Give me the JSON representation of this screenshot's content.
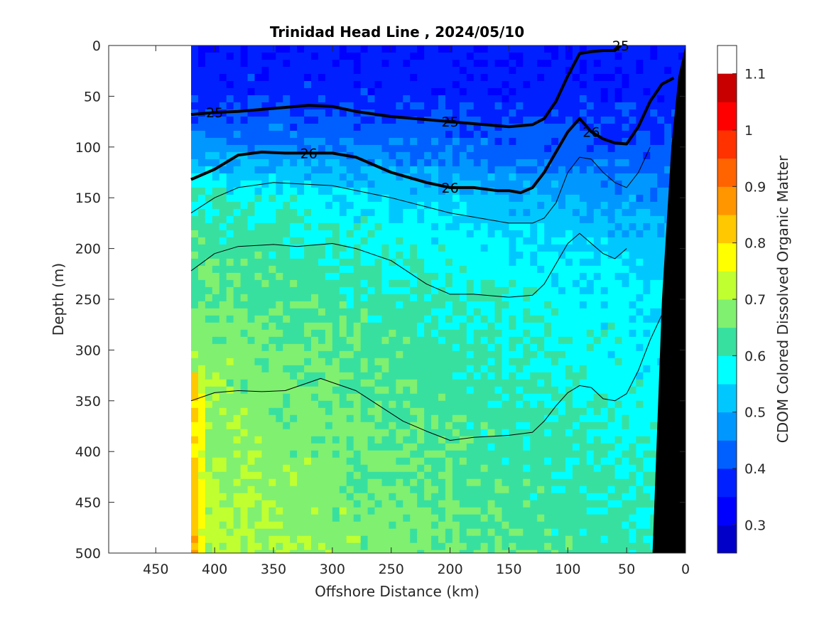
{
  "chart_data": {
    "type": "heatmap",
    "title": "Trinidad Head Line , 2024/05/10",
    "xlabel": "Offshore Distance (km)",
    "ylabel": "Depth (m)",
    "colorbar_label": "CDOM Colored Dissolved Organic Matter",
    "xlim": [
      490,
      0
    ],
    "ylim": [
      0,
      500
    ],
    "x_reversed": true,
    "y_reversed": true,
    "x_ticks": [
      450,
      400,
      350,
      300,
      250,
      200,
      150,
      100,
      50,
      0
    ],
    "y_ticks": [
      0,
      50,
      100,
      150,
      200,
      250,
      300,
      350,
      400,
      450,
      500
    ],
    "data_x_range": [
      420,
      0
    ],
    "colorbar": {
      "ticks": [
        0.3,
        0.4,
        0.5,
        0.6,
        0.7,
        0.8,
        0.9,
        1,
        1.1
      ],
      "levels": [
        0.2,
        0.25,
        0.3,
        0.35,
        0.4,
        0.45,
        0.5,
        0.55,
        0.6,
        0.65,
        0.7,
        0.75,
        0.8,
        0.85,
        0.9,
        0.95,
        1.0,
        1.05,
        1.1,
        1.15
      ],
      "colors": [
        "#00008f",
        "#0000c8",
        "#0000ff",
        "#0020ff",
        "#0060ff",
        "#0098ff",
        "#00c8ff",
        "#00ffff",
        "#38e0a0",
        "#80f070",
        "#c0ff30",
        "#ffff00",
        "#ffc800",
        "#ff9600",
        "#ff6400",
        "#ff3200",
        "#ff0000",
        "#c80000"
      ]
    },
    "field_profile": {
      "depth": [
        0,
        50,
        100,
        150,
        200,
        250,
        300,
        350,
        400,
        450,
        500
      ],
      "value_nearshore_km": [
        0.36,
        0.37,
        0.4,
        0.46,
        0.52,
        0.55,
        0.56,
        0.57,
        0.58,
        0.59,
        0.6
      ],
      "value_offshore_km": [
        0.36,
        0.38,
        0.47,
        0.6,
        0.64,
        0.66,
        0.68,
        0.69,
        0.7,
        0.71,
        0.72
      ]
    },
    "isopycnals": [
      {
        "sigma": "25",
        "label": "25",
        "emphasis": true,
        "x": [
          420,
          400,
          380,
          350,
          320,
          300,
          280,
          250,
          220,
          200,
          180,
          150,
          130,
          120,
          110,
          100,
          90,
          80,
          70,
          60,
          55
        ],
        "y": [
          68,
          66,
          65,
          62,
          59,
          60,
          65,
          70,
          73,
          75,
          77,
          80,
          78,
          72,
          55,
          30,
          8,
          6,
          5,
          5,
          0
        ]
      },
      {
        "sigma": "26",
        "label": "26",
        "emphasis": true,
        "x": [
          420,
          400,
          380,
          360,
          340,
          320,
          300,
          280,
          250,
          220,
          200,
          180,
          160,
          150,
          140,
          130,
          120,
          110,
          100,
          90,
          80,
          70,
          60,
          50,
          40,
          30,
          20,
          10
        ],
        "y": [
          132,
          122,
          108,
          105,
          106,
          106,
          106,
          110,
          125,
          135,
          140,
          140,
          143,
          143,
          145,
          140,
          125,
          105,
          85,
          72,
          85,
          92,
          96,
          97,
          80,
          55,
          38,
          32
        ]
      },
      {
        "sigma": "",
        "label": "",
        "emphasis": false,
        "x": [
          420,
          400,
          380,
          350,
          300,
          250,
          200,
          150,
          130,
          120,
          110,
          100,
          90,
          80,
          70,
          60,
          50,
          40,
          30
        ],
        "y": [
          165,
          150,
          140,
          135,
          138,
          150,
          165,
          175,
          175,
          170,
          155,
          125,
          110,
          112,
          125,
          135,
          140,
          125,
          100
        ]
      },
      {
        "sigma": "",
        "label": "",
        "emphasis": false,
        "x": [
          420,
          400,
          380,
          350,
          330,
          300,
          280,
          250,
          220,
          200,
          180,
          150,
          130,
          120,
          110,
          100,
          90,
          80,
          70,
          60,
          50
        ],
        "y": [
          222,
          205,
          198,
          196,
          198,
          195,
          200,
          212,
          235,
          245,
          245,
          248,
          246,
          235,
          215,
          195,
          185,
          195,
          205,
          210,
          200
        ]
      },
      {
        "sigma": "",
        "label": "",
        "emphasis": false,
        "x": [
          420,
          400,
          380,
          360,
          340,
          320,
          310,
          300,
          280,
          260,
          240,
          220,
          200,
          180,
          150,
          130,
          120,
          110,
          100,
          90,
          80,
          70,
          60,
          50,
          40,
          30,
          20
        ],
        "y": [
          350,
          342,
          340,
          341,
          340,
          332,
          328,
          332,
          340,
          355,
          370,
          380,
          389,
          386,
          384,
          381,
          370,
          355,
          342,
          335,
          337,
          348,
          350,
          343,
          320,
          290,
          265
        ]
      }
    ],
    "topography": {
      "x": [
        28,
        20,
        12,
        6,
        0,
        0,
        25
      ],
      "y": [
        500,
        250,
        100,
        30,
        0,
        500,
        500
      ],
      "color": "#000000"
    }
  }
}
